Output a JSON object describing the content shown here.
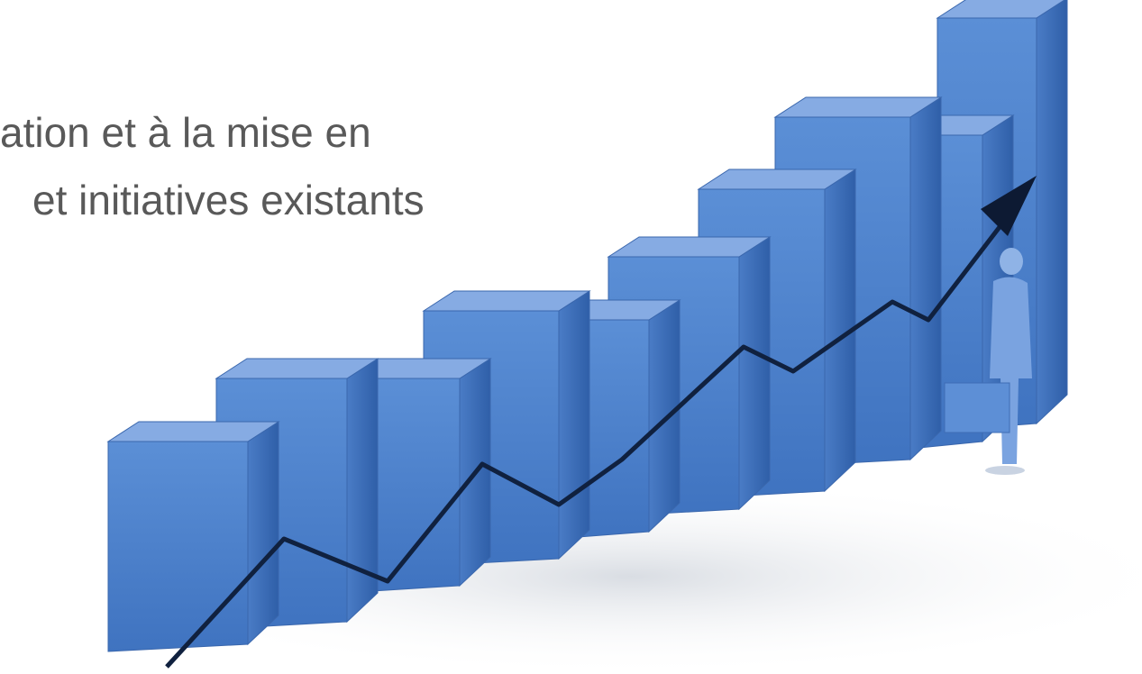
{
  "text_lines": [
    "ation et à la mise en",
    "et initiatives existants"
  ]
}
